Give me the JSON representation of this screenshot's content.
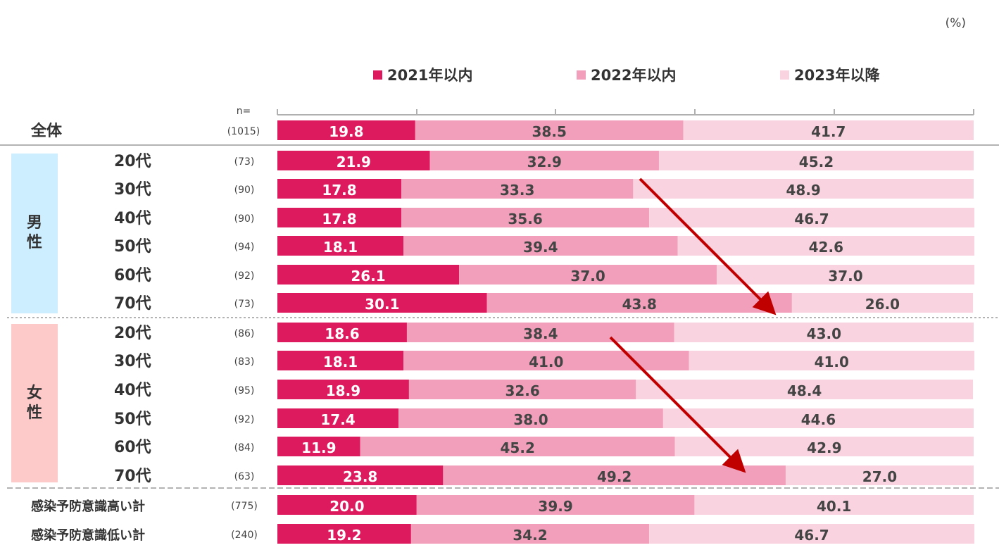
{
  "unit_label": "(%)",
  "n_header": "n=",
  "legend": [
    {
      "label": "2021年以内",
      "color": "#de1a5e"
    },
    {
      "label": "2022年以内",
      "color": "#f29fbc"
    },
    {
      "label": "2023年以降",
      "color": "#f9d3df"
    }
  ],
  "groups": {
    "male": "男\n性",
    "female": "女\n性",
    "male_bg": "#cdeefe",
    "female_bg": "#fdc9c9"
  },
  "chart_data": {
    "type": "bar",
    "orientation": "horizontal",
    "stacked": true,
    "xlim": [
      0,
      100
    ],
    "unit": "%",
    "series_names": [
      "2021年以内",
      "2022年以内",
      "2023年以降"
    ],
    "rows": [
      {
        "label": "全体",
        "group": "total",
        "n": "(1015)",
        "values": [
          19.8,
          38.5,
          41.7
        ]
      },
      {
        "label": "20代",
        "group": "male",
        "n": "(73)",
        "values": [
          21.9,
          32.9,
          45.2
        ]
      },
      {
        "label": "30代",
        "group": "male",
        "n": "(90)",
        "values": [
          17.8,
          33.3,
          48.9
        ]
      },
      {
        "label": "40代",
        "group": "male",
        "n": "(90)",
        "values": [
          17.8,
          35.6,
          46.7
        ]
      },
      {
        "label": "50代",
        "group": "male",
        "n": "(94)",
        "values": [
          18.1,
          39.4,
          42.6
        ]
      },
      {
        "label": "60代",
        "group": "male",
        "n": "(92)",
        "values": [
          26.1,
          37.0,
          37.0
        ]
      },
      {
        "label": "70代",
        "group": "male",
        "n": "(73)",
        "values": [
          30.1,
          43.8,
          26.0
        ]
      },
      {
        "label": "20代",
        "group": "female",
        "n": "(86)",
        "values": [
          18.6,
          38.4,
          43.0
        ]
      },
      {
        "label": "30代",
        "group": "female",
        "n": "(83)",
        "values": [
          18.1,
          41.0,
          41.0
        ]
      },
      {
        "label": "40代",
        "group": "female",
        "n": "(95)",
        "values": [
          18.9,
          32.6,
          48.4
        ]
      },
      {
        "label": "50代",
        "group": "female",
        "n": "(92)",
        "values": [
          17.4,
          38.0,
          44.6
        ]
      },
      {
        "label": "60代",
        "group": "female",
        "n": "(84)",
        "values": [
          11.9,
          45.2,
          42.9
        ]
      },
      {
        "label": "70代",
        "group": "female",
        "n": "(63)",
        "values": [
          23.8,
          49.2,
          27.0
        ]
      },
      {
        "label": "感染予防意識高い計",
        "group": "awareness",
        "n": "(775)",
        "values": [
          20.0,
          39.9,
          40.1
        ]
      },
      {
        "label": "感染予防意識低い計",
        "group": "awareness",
        "n": "(240)",
        "values": [
          19.2,
          34.2,
          46.7
        ]
      }
    ]
  }
}
